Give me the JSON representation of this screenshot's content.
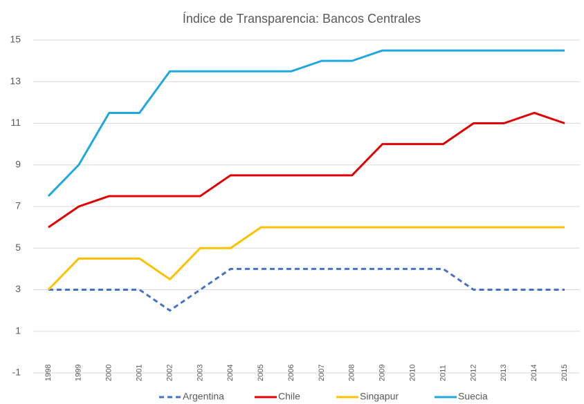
{
  "chart_data": {
    "type": "line",
    "title": "Índice de Transparencia: Bancos Centrales",
    "categories": [
      "1998",
      "1999",
      "2000",
      "2001",
      "2002",
      "2003",
      "2004",
      "2005",
      "2006",
      "2007",
      "2008",
      "2009",
      "2010",
      "2011",
      "2012",
      "2013",
      "2014",
      "2015"
    ],
    "series": [
      {
        "name": "Argentina",
        "color": "#4472c4",
        "dashed": true,
        "values": [
          3,
          3,
          3,
          3,
          2,
          3,
          4,
          4,
          4,
          4,
          4,
          4,
          4,
          4,
          3,
          3,
          3,
          3
        ]
      },
      {
        "name": "Chile",
        "color": "#e00000",
        "dashed": false,
        "values": [
          6,
          7,
          7.5,
          7.5,
          7.5,
          7.5,
          8.5,
          8.5,
          8.5,
          8.5,
          8.5,
          10,
          10,
          10,
          11,
          11,
          11.5,
          11
        ]
      },
      {
        "name": "Singapur",
        "color": "#ffc000",
        "dashed": false,
        "values": [
          3,
          4.5,
          4.5,
          4.5,
          3.5,
          5,
          5,
          6,
          6,
          6,
          6,
          6,
          6,
          6,
          6,
          6,
          6,
          6
        ]
      },
      {
        "name": "Suecia",
        "color": "#1fa8e0",
        "dashed": false,
        "values": [
          7.5,
          9,
          11.5,
          11.5,
          13.5,
          13.5,
          13.5,
          13.5,
          13.5,
          14,
          14,
          14.5,
          14.5,
          14.5,
          14.5,
          14.5,
          14.5,
          14.5
        ]
      }
    ],
    "ylim": [
      -1,
      15
    ],
    "yticks": [
      -1,
      1,
      3,
      5,
      7,
      9,
      11,
      13,
      15
    ],
    "grid": true,
    "legend": "bottom"
  }
}
